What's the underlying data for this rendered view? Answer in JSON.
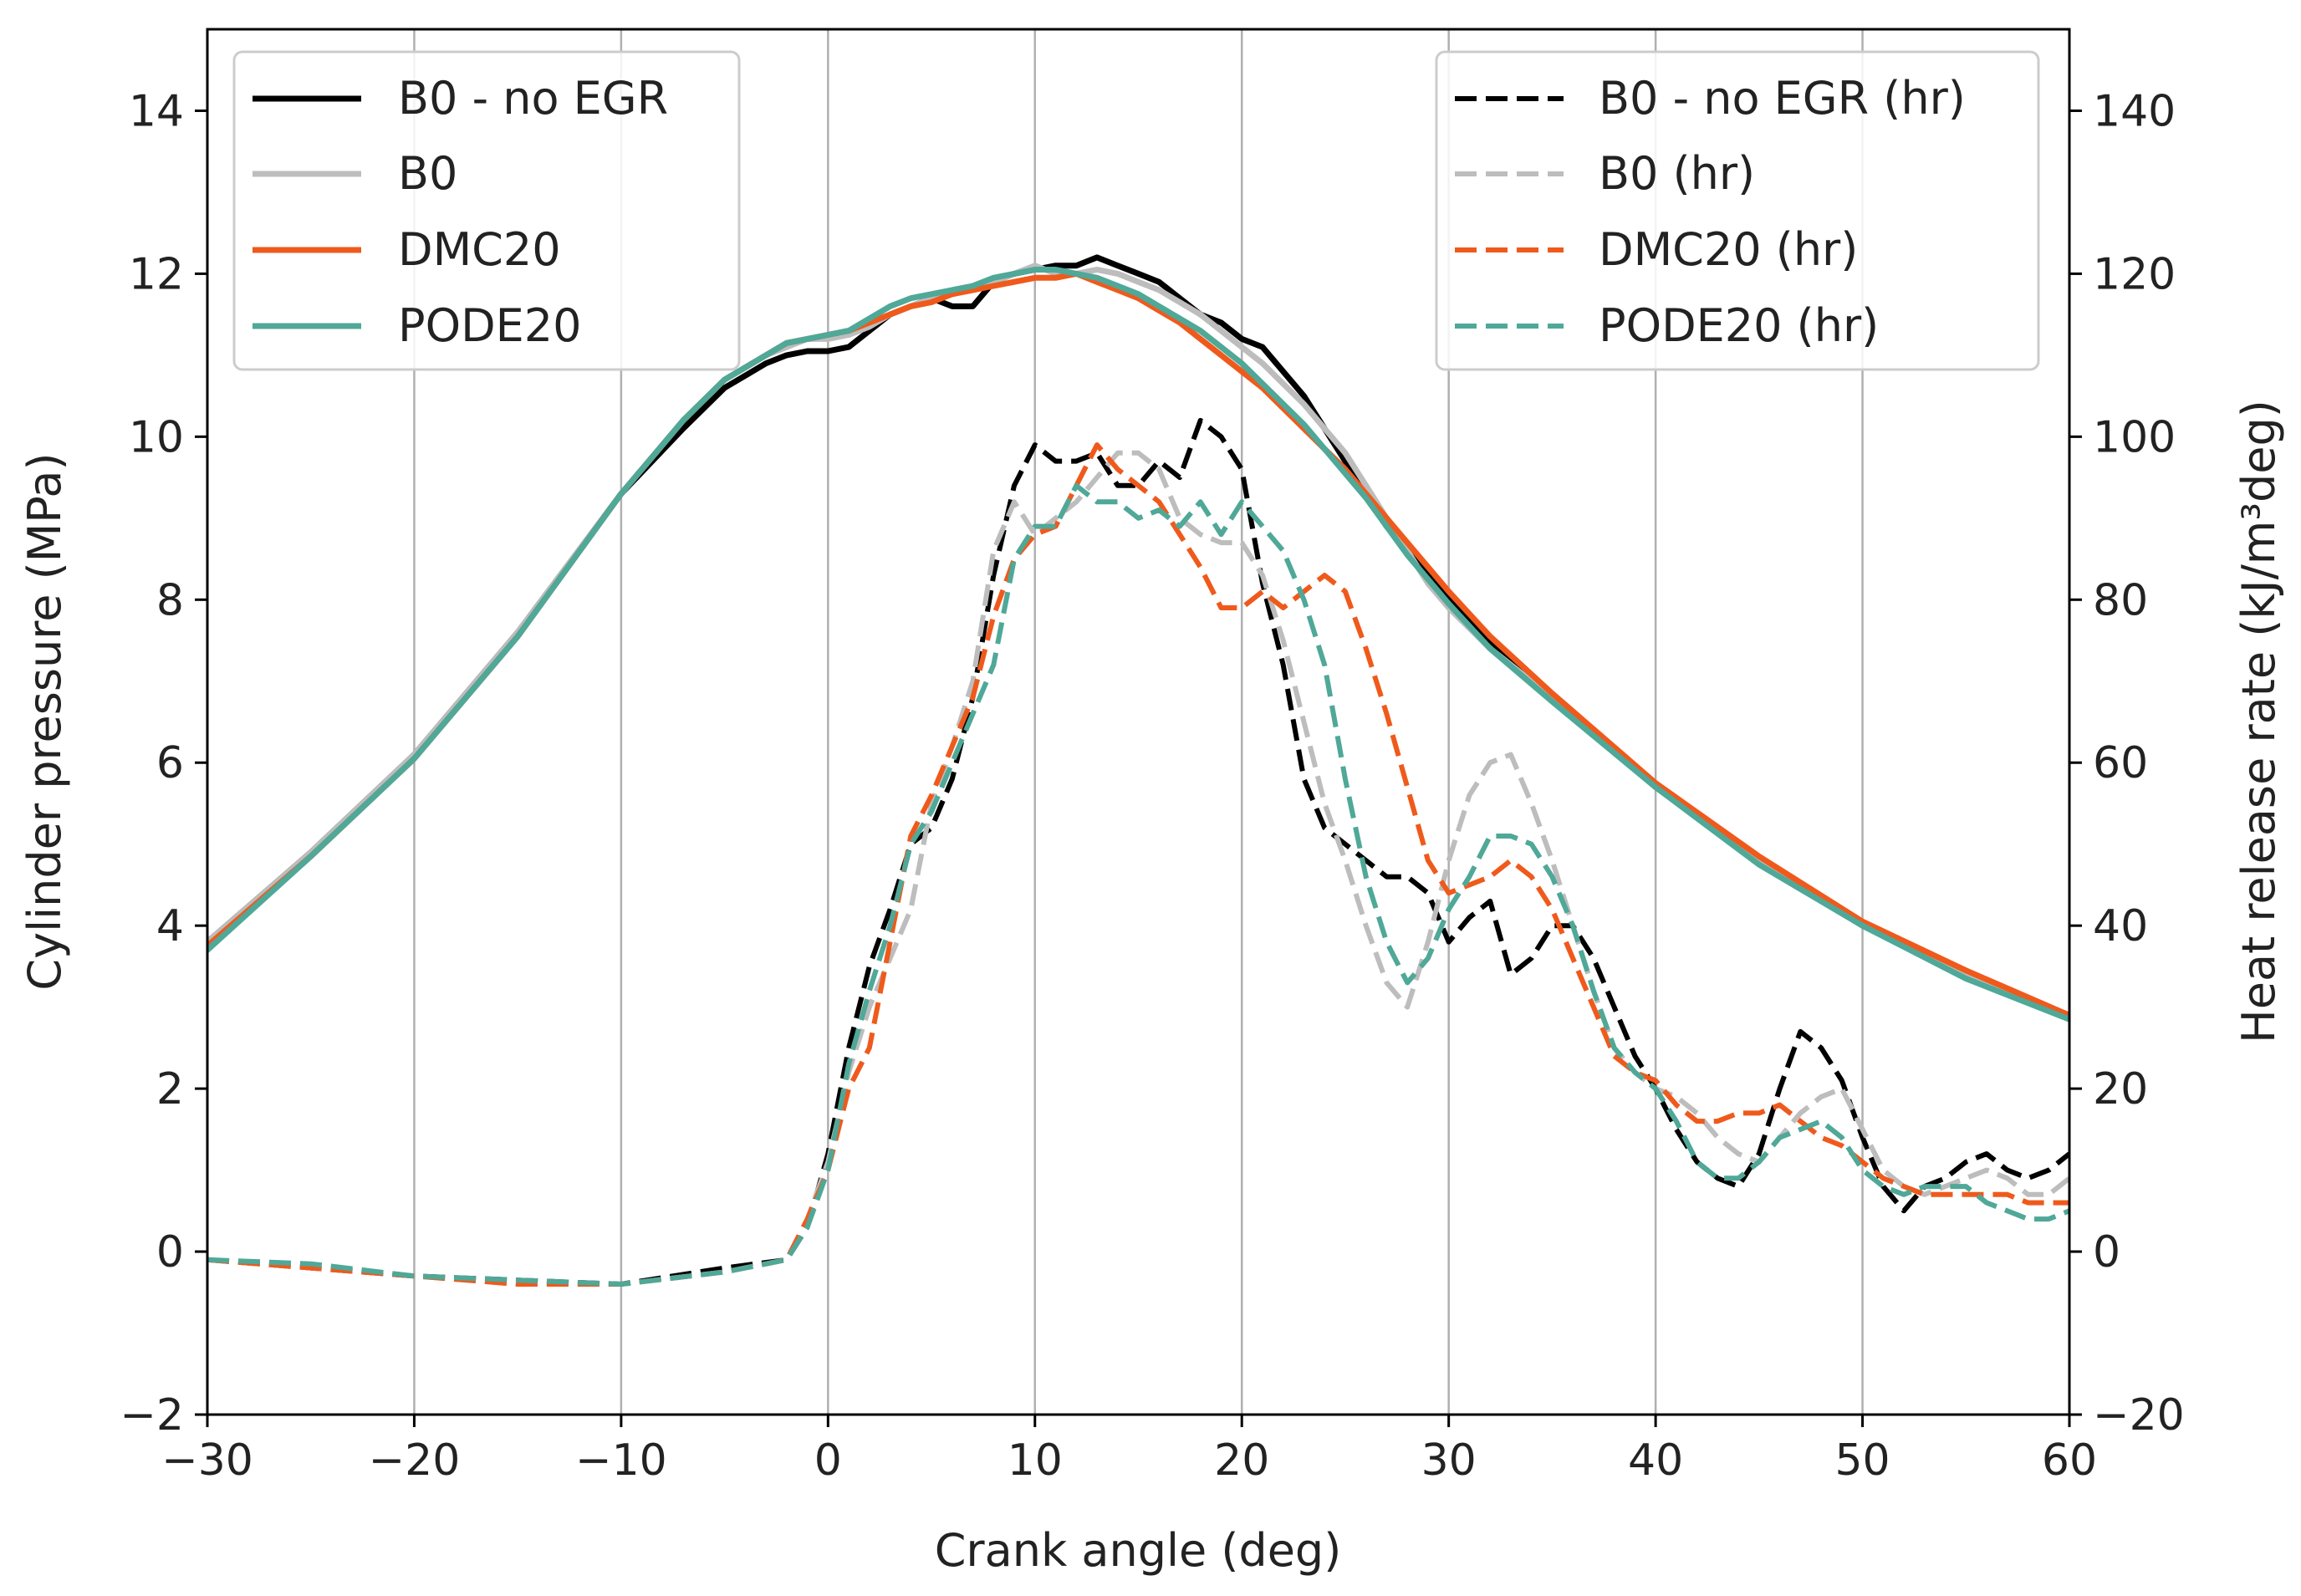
{
  "chart_data": {
    "type": "line",
    "xlabel": "Crank angle (deg)",
    "ylabel_left": "Cylinder pressure (MPa)",
    "ylabel_right": "Heat release rate (kJ/m³deg)",
    "xlim": [
      -30,
      60
    ],
    "ylim_left": [
      -2,
      15
    ],
    "ylim_right": [
      -20,
      150
    ],
    "xticks": [
      -30,
      -20,
      -10,
      0,
      10,
      20,
      30,
      40,
      50,
      60
    ],
    "xtick_labels": [
      "−30",
      "−20",
      "−10",
      "0",
      "10",
      "20",
      "30",
      "40",
      "50",
      "60"
    ],
    "yticks_left": [
      -2,
      0,
      2,
      4,
      6,
      8,
      10,
      12,
      14
    ],
    "ytick_labels_left": [
      "−2",
      "0",
      "2",
      "4",
      "6",
      "8",
      "10",
      "12",
      "14"
    ],
    "yticks_right": [
      -20,
      0,
      20,
      40,
      60,
      80,
      100,
      120,
      140
    ],
    "ytick_labels_right": [
      "−20",
      "0",
      "20",
      "40",
      "60",
      "80",
      "100",
      "120",
      "140"
    ],
    "grid": "vertical",
    "legend_left": {
      "placement": "top-left",
      "entries": [
        "B0 - no EGR",
        "B0",
        "DMC20",
        "PODE20"
      ]
    },
    "legend_right": {
      "placement": "top-right",
      "entries": [
        "B0 - no EGR (hr)",
        "B0 (hr)",
        "DMC20 (hr)",
        "PODE20 (hr)"
      ]
    },
    "colors": {
      "B0_no_EGR": "#000000",
      "B0": "#bdbdbd",
      "DMC20": "#ef5a1c",
      "PODE20": "#4fa898"
    },
    "pressure_series": [
      {
        "name": "B0 - no EGR",
        "color": "#000000",
        "x": [
          -30,
          -25,
          -20,
          -15,
          -10,
          -7,
          -5,
          -3,
          -2,
          -1,
          0,
          1,
          2,
          3,
          4,
          5,
          6,
          7,
          8,
          9,
          10,
          11,
          12,
          13,
          14,
          15,
          16,
          17,
          18,
          19,
          20,
          21,
          22,
          23,
          24,
          25,
          26,
          27,
          28,
          29,
          30,
          32,
          35,
          40,
          45,
          50,
          55,
          60
        ],
        "values": [
          3.8,
          4.9,
          6.1,
          7.6,
          9.3,
          10.1,
          10.6,
          10.9,
          11.0,
          11.05,
          11.05,
          11.1,
          11.3,
          11.5,
          11.6,
          11.7,
          11.6,
          11.6,
          11.9,
          12.0,
          12.05,
          12.1,
          12.1,
          12.2,
          12.1,
          12.0,
          11.9,
          11.7,
          11.5,
          11.4,
          11.2,
          11.1,
          10.8,
          10.5,
          10.1,
          9.7,
          9.3,
          8.9,
          8.6,
          8.3,
          8.0,
          7.5,
          6.8,
          5.7,
          4.8,
          4.0,
          3.4,
          2.9
        ]
      },
      {
        "name": "B0",
        "color": "#bdbdbd",
        "x": [
          -30,
          -25,
          -20,
          -15,
          -10,
          -7,
          -5,
          -3,
          -2,
          -1,
          0,
          1,
          2,
          3,
          4,
          5,
          6,
          7,
          8,
          9,
          10,
          11,
          12,
          13,
          14,
          15,
          16,
          17,
          18,
          19,
          20,
          21,
          22,
          23,
          24,
          25,
          26,
          27,
          28,
          29,
          30,
          32,
          35,
          40,
          45,
          50,
          55,
          60
        ],
        "values": [
          3.8,
          4.9,
          6.1,
          7.6,
          9.3,
          10.2,
          10.7,
          11.0,
          11.1,
          11.2,
          11.2,
          11.25,
          11.35,
          11.5,
          11.6,
          11.7,
          11.75,
          11.8,
          11.9,
          12.0,
          12.1,
          12.0,
          12.0,
          12.05,
          12.0,
          11.9,
          11.8,
          11.65,
          11.5,
          11.3,
          11.1,
          10.9,
          10.65,
          10.4,
          10.1,
          9.8,
          9.4,
          9.0,
          8.6,
          8.2,
          7.9,
          7.4,
          6.8,
          5.7,
          4.8,
          4.0,
          3.4,
          2.9
        ]
      },
      {
        "name": "DMC20",
        "color": "#ef5a1c",
        "x": [
          -30,
          -25,
          -20,
          -15,
          -10,
          -7,
          -5,
          -3,
          -2,
          -1,
          0,
          1,
          2,
          3,
          4,
          5,
          6,
          7,
          8,
          9,
          10,
          11,
          12,
          13,
          14,
          15,
          16,
          17,
          18,
          19,
          20,
          21,
          22,
          23,
          24,
          25,
          26,
          27,
          28,
          29,
          30,
          32,
          35,
          40,
          45,
          50,
          55,
          60
        ],
        "values": [
          3.75,
          4.85,
          6.05,
          7.55,
          9.3,
          10.2,
          10.7,
          11.0,
          11.15,
          11.2,
          11.25,
          11.3,
          11.4,
          11.5,
          11.6,
          11.65,
          11.75,
          11.8,
          11.85,
          11.9,
          11.95,
          11.95,
          12.0,
          11.9,
          11.8,
          11.7,
          11.55,
          11.4,
          11.2,
          11.0,
          10.8,
          10.6,
          10.35,
          10.1,
          9.85,
          9.6,
          9.3,
          9.0,
          8.7,
          8.4,
          8.1,
          7.55,
          6.85,
          5.75,
          4.85,
          4.05,
          3.45,
          2.9
        ]
      },
      {
        "name": "PODE20",
        "color": "#4fa898",
        "x": [
          -30,
          -25,
          -20,
          -15,
          -10,
          -7,
          -5,
          -3,
          -2,
          -1,
          0,
          1,
          2,
          3,
          4,
          5,
          6,
          7,
          8,
          9,
          10,
          11,
          12,
          13,
          14,
          15,
          16,
          17,
          18,
          19,
          20,
          21,
          22,
          23,
          24,
          25,
          26,
          27,
          28,
          29,
          30,
          32,
          35,
          40,
          45,
          50,
          55,
          60
        ],
        "values": [
          3.7,
          4.85,
          6.05,
          7.55,
          9.3,
          10.2,
          10.7,
          11.0,
          11.15,
          11.2,
          11.25,
          11.3,
          11.45,
          11.6,
          11.7,
          11.75,
          11.8,
          11.85,
          11.95,
          12.0,
          12.05,
          12.05,
          12.0,
          11.95,
          11.85,
          11.75,
          11.6,
          11.45,
          11.3,
          11.1,
          10.9,
          10.65,
          10.4,
          10.15,
          9.85,
          9.55,
          9.25,
          8.9,
          8.55,
          8.25,
          7.95,
          7.4,
          6.75,
          5.7,
          4.75,
          4.0,
          3.35,
          2.85
        ]
      }
    ],
    "heat_release_series": [
      {
        "name": "B0 - no EGR (hr)",
        "color": "#000000",
        "x": [
          -30,
          -25,
          -20,
          -15,
          -10,
          -5,
          -2,
          -1,
          0,
          1,
          2,
          3,
          4,
          5,
          6,
          7,
          8,
          9,
          10,
          11,
          12,
          13,
          14,
          15,
          16,
          17,
          18,
          19,
          20,
          21,
          22,
          23,
          24,
          25,
          26,
          27,
          28,
          29,
          30,
          31,
          32,
          33,
          34,
          35,
          36,
          37,
          38,
          39,
          40,
          41,
          42,
          43,
          44,
          45,
          46,
          47,
          48,
          49,
          50,
          51,
          52,
          53,
          54,
          55,
          56,
          57,
          58,
          59,
          60
        ],
        "values": [
          -1,
          -2,
          -3,
          -3.5,
          -4,
          -2,
          -1,
          3,
          12,
          25,
          35,
          42,
          50,
          52,
          58,
          68,
          83,
          94,
          99,
          97,
          97,
          98,
          94,
          94,
          97,
          95,
          102,
          100,
          96,
          82,
          72,
          58,
          52,
          50,
          48,
          46,
          46,
          44,
          38,
          41,
          43,
          34,
          36,
          40,
          40,
          36,
          30,
          24,
          20,
          15,
          11,
          9,
          8,
          12,
          20,
          27,
          25,
          21,
          14,
          8,
          5,
          8,
          9,
          11,
          12,
          10,
          9,
          10,
          12
        ]
      },
      {
        "name": "B0 (hr)",
        "color": "#bdbdbd",
        "x": [
          -30,
          -25,
          -20,
          -15,
          -10,
          -5,
          -2,
          -1,
          0,
          1,
          2,
          3,
          4,
          5,
          6,
          7,
          8,
          9,
          10,
          11,
          12,
          13,
          14,
          15,
          16,
          17,
          18,
          19,
          20,
          21,
          22,
          23,
          24,
          25,
          26,
          27,
          28,
          29,
          30,
          31,
          32,
          33,
          34,
          35,
          36,
          37,
          38,
          39,
          40,
          41,
          42,
          43,
          44,
          45,
          46,
          47,
          48,
          49,
          50,
          51,
          52,
          53,
          54,
          55,
          56,
          57,
          58,
          59,
          60
        ],
        "values": [
          -1,
          -2,
          -3,
          -4,
          -4,
          -2.5,
          -1,
          4,
          11,
          22,
          30,
          36,
          42,
          55,
          62,
          70,
          86,
          92,
          88,
          90,
          92,
          95,
          98,
          98,
          96,
          90,
          88,
          87,
          87,
          83,
          75,
          65,
          55,
          48,
          40,
          33,
          30,
          38,
          48,
          56,
          60,
          61,
          55,
          48,
          40,
          32,
          25,
          22,
          20,
          19,
          17,
          14,
          12,
          11,
          14,
          17,
          19,
          20,
          15,
          10,
          8,
          7,
          8,
          9,
          10,
          9,
          7,
          7,
          9
        ]
      },
      {
        "name": "DMC20 (hr)",
        "color": "#ef5a1c",
        "x": [
          -30,
          -25,
          -20,
          -15,
          -10,
          -5,
          -2,
          -1,
          0,
          1,
          2,
          3,
          4,
          5,
          6,
          7,
          8,
          9,
          10,
          11,
          12,
          13,
          14,
          15,
          16,
          17,
          18,
          19,
          20,
          21,
          22,
          23,
          24,
          25,
          26,
          27,
          28,
          29,
          30,
          31,
          32,
          33,
          34,
          35,
          36,
          37,
          38,
          39,
          40,
          41,
          42,
          43,
          44,
          45,
          46,
          47,
          48,
          49,
          50,
          51,
          52,
          53,
          54,
          55,
          56,
          57,
          58,
          59,
          60
        ],
        "values": [
          -1,
          -2,
          -3,
          -4,
          -4,
          -2.5,
          -1,
          4,
          10,
          20,
          25,
          38,
          51,
          56,
          62,
          68,
          78,
          85,
          88,
          89,
          94,
          99,
          96,
          94,
          92,
          88,
          84,
          79,
          79,
          81,
          79,
          81,
          83,
          81,
          74,
          66,
          57,
          48,
          44,
          45,
          46,
          48,
          46,
          42,
          36,
          30,
          24,
          22,
          21,
          18,
          16,
          16,
          17,
          17,
          18,
          16,
          14,
          13,
          11,
          9,
          8,
          7,
          7,
          7,
          7,
          7,
          6,
          6,
          6
        ]
      },
      {
        "name": "PODE20 (hr)",
        "color": "#4fa898",
        "x": [
          -30,
          -25,
          -20,
          -15,
          -10,
          -5,
          -2,
          -1,
          0,
          1,
          2,
          3,
          4,
          5,
          6,
          7,
          8,
          9,
          10,
          11,
          12,
          13,
          14,
          15,
          16,
          17,
          18,
          19,
          20,
          21,
          22,
          23,
          24,
          25,
          26,
          27,
          28,
          29,
          30,
          31,
          32,
          33,
          34,
          35,
          36,
          37,
          38,
          39,
          40,
          41,
          42,
          43,
          44,
          45,
          46,
          47,
          48,
          49,
          50,
          51,
          52,
          53,
          54,
          55,
          56,
          57,
          58,
          59,
          60
        ],
        "values": [
          -1,
          -1.5,
          -3,
          -3.5,
          -4,
          -2.5,
          -1,
          3,
          10,
          23,
          32,
          40,
          50,
          54,
          60,
          66,
          72,
          85,
          89,
          89,
          94,
          92,
          92,
          90,
          91,
          89,
          92,
          88,
          92,
          89,
          86,
          80,
          72,
          58,
          46,
          38,
          33,
          36,
          42,
          46,
          51,
          51,
          50,
          46,
          40,
          32,
          25,
          22,
          20,
          16,
          11,
          9,
          9,
          11,
          14,
          15,
          16,
          14,
          10,
          8,
          7,
          8,
          8,
          8,
          6,
          5,
          4,
          4,
          5
        ]
      }
    ]
  }
}
